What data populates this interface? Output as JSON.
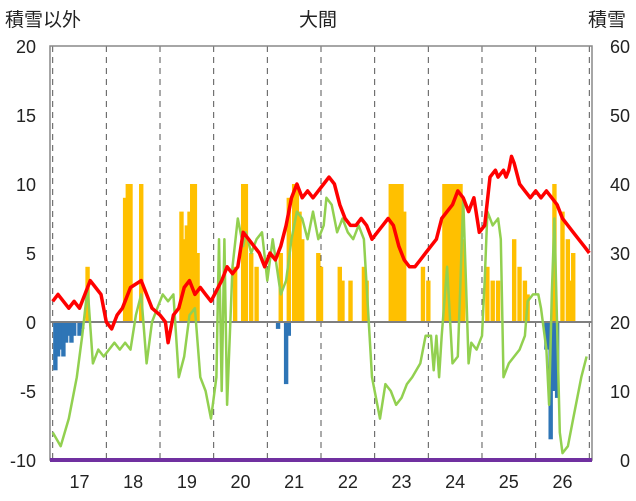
{
  "chart_data": {
    "type": "bar+line",
    "title": "大間",
    "ylabel_left": "積雪以外",
    "ylabel_right": "積雪",
    "ylim_left": [
      -10,
      20
    ],
    "yticks_left": [
      "-10",
      "-5",
      "0",
      "5",
      "10",
      "15",
      "20"
    ],
    "ylim_right": [
      0,
      60
    ],
    "yticks_right": [
      "0",
      "10",
      "20",
      "30",
      "40",
      "50",
      "60"
    ],
    "xlim": [
      16.45,
      26.55
    ],
    "x_ticks": [
      "17",
      "18",
      "19",
      "20",
      "21",
      "22",
      "23",
      "24",
      "25",
      "26"
    ],
    "x_divisions": [
      16.5,
      17.5,
      18.5,
      19.5,
      20.5,
      21.5,
      22.5,
      23.5,
      24.5,
      25.5,
      26.5
    ],
    "grid": "vertical dashed at each x tick",
    "series": [
      {
        "kind": "bar",
        "axis": "left",
        "color": "#ffc000",
        "points": [
          [
            17.15,
            4
          ],
          [
            17.85,
            9
          ],
          [
            17.9,
            10
          ],
          [
            17.95,
            10
          ],
          [
            18.15,
            10
          ],
          [
            18.9,
            8
          ],
          [
            18.95,
            6
          ],
          [
            19.0,
            7
          ],
          [
            19.05,
            8
          ],
          [
            19.1,
            10
          ],
          [
            19.15,
            10
          ],
          [
            19.2,
            5
          ],
          [
            19.9,
            4
          ],
          [
            20.05,
            10
          ],
          [
            20.1,
            10
          ],
          [
            20.2,
            5
          ],
          [
            20.3,
            4
          ],
          [
            20.75,
            5
          ],
          [
            20.9,
            9
          ],
          [
            21.0,
            10
          ],
          [
            21.05,
            10
          ],
          [
            21.1,
            8
          ],
          [
            21.15,
            6
          ],
          [
            21.45,
            5
          ],
          [
            21.5,
            4
          ],
          [
            21.85,
            4
          ],
          [
            21.9,
            3
          ],
          [
            22.05,
            3
          ],
          [
            22.3,
            4
          ],
          [
            22.35,
            3
          ],
          [
            22.8,
            10
          ],
          [
            22.85,
            10
          ],
          [
            22.9,
            10
          ],
          [
            22.95,
            10
          ],
          [
            23.0,
            10
          ],
          [
            23.05,
            8
          ],
          [
            23.4,
            4
          ],
          [
            23.5,
            3
          ],
          [
            23.8,
            10
          ],
          [
            23.85,
            10
          ],
          [
            23.9,
            10
          ],
          [
            23.95,
            10
          ],
          [
            24.0,
            10
          ],
          [
            24.05,
            10
          ],
          [
            24.1,
            10
          ],
          [
            24.15,
            6
          ],
          [
            24.6,
            4
          ],
          [
            24.7,
            3
          ],
          [
            24.8,
            3
          ],
          [
            25.1,
            6
          ],
          [
            25.2,
            4
          ],
          [
            25.3,
            3
          ],
          [
            25.35,
            2
          ],
          [
            25.85,
            10
          ],
          [
            26.0,
            8
          ],
          [
            26.1,
            6
          ],
          [
            26.15,
            3
          ],
          [
            26.2,
            5
          ]
        ]
      },
      {
        "kind": "bar",
        "axis": "left",
        "color": "#2e75b6",
        "points": [
          [
            16.55,
            -3.5
          ],
          [
            16.6,
            -2.5
          ],
          [
            16.65,
            -2.0
          ],
          [
            16.7,
            -2.5
          ],
          [
            16.75,
            -1.5
          ],
          [
            16.8,
            -1
          ],
          [
            16.85,
            -1.5
          ],
          [
            16.9,
            -1
          ],
          [
            17.0,
            -1
          ],
          [
            17.05,
            -0.5
          ],
          [
            20.7,
            -0.5
          ],
          [
            20.85,
            -4.5
          ],
          [
            20.9,
            -1
          ],
          [
            25.7,
            -2.0
          ],
          [
            25.78,
            -8.5
          ],
          [
            25.82,
            -5.0
          ],
          [
            25.9,
            -5.5
          ]
        ]
      },
      {
        "kind": "line",
        "axis": "left",
        "color": "#92d050",
        "name": "",
        "points": [
          [
            16.5,
            -8.0
          ],
          [
            16.65,
            -9.0
          ],
          [
            16.8,
            -7.0
          ],
          [
            16.95,
            -4.0
          ],
          [
            17.05,
            -1.0
          ],
          [
            17.15,
            2.5
          ],
          [
            17.25,
            -3.0
          ],
          [
            17.35,
            -2.0
          ],
          [
            17.45,
            -2.5
          ],
          [
            17.55,
            -2.0
          ],
          [
            17.65,
            -1.5
          ],
          [
            17.75,
            -2.0
          ],
          [
            17.85,
            -1.5
          ],
          [
            17.95,
            -2.0
          ],
          [
            18.05,
            0.5
          ],
          [
            18.15,
            2.0
          ],
          [
            18.25,
            -3.0
          ],
          [
            18.35,
            0.0
          ],
          [
            18.45,
            1.0
          ],
          [
            18.55,
            2.0
          ],
          [
            18.65,
            1.5
          ],
          [
            18.75,
            2.0
          ],
          [
            18.85,
            -4.0
          ],
          [
            18.95,
            -2.5
          ],
          [
            19.05,
            0.5
          ],
          [
            19.15,
            1.0
          ],
          [
            19.25,
            -4.0
          ],
          [
            19.35,
            -5.0
          ],
          [
            19.45,
            -7.0
          ],
          [
            19.55,
            -4.0
          ],
          [
            19.6,
            6.0
          ],
          [
            19.65,
            -5.0
          ],
          [
            19.7,
            6.0
          ],
          [
            19.75,
            -6.0
          ],
          [
            19.85,
            4.0
          ],
          [
            19.95,
            7.5
          ],
          [
            20.05,
            5.5
          ],
          [
            20.1,
            6.5
          ],
          [
            20.2,
            5.0
          ],
          [
            20.3,
            6.0
          ],
          [
            20.4,
            6.5
          ],
          [
            20.5,
            3.0
          ],
          [
            20.6,
            6.0
          ],
          [
            20.75,
            2.0
          ],
          [
            20.85,
            3.0
          ],
          [
            20.95,
            6.0
          ],
          [
            21.05,
            8.0
          ],
          [
            21.15,
            7.5
          ],
          [
            21.25,
            6.0
          ],
          [
            21.35,
            8.0
          ],
          [
            21.45,
            6.0
          ],
          [
            21.55,
            7.0
          ],
          [
            21.6,
            9.0
          ],
          [
            21.7,
            8.5
          ],
          [
            21.8,
            6.5
          ],
          [
            21.9,
            7.5
          ],
          [
            22.0,
            6.5
          ],
          [
            22.1,
            6.0
          ],
          [
            22.2,
            7.0
          ],
          [
            22.3,
            6.0
          ],
          [
            22.45,
            -4.0
          ],
          [
            22.6,
            -7.0
          ],
          [
            22.7,
            -4.5
          ],
          [
            22.8,
            -5.0
          ],
          [
            22.9,
            -6.0
          ],
          [
            23.0,
            -5.5
          ],
          [
            23.1,
            -4.5
          ],
          [
            23.2,
            -4.0
          ],
          [
            23.35,
            -3.0
          ],
          [
            23.45,
            -1.0
          ],
          [
            23.55,
            -1.0
          ],
          [
            23.6,
            -3.5
          ],
          [
            23.65,
            -1.0
          ],
          [
            23.7,
            -4.0
          ],
          [
            23.75,
            -1.0
          ],
          [
            23.85,
            4.0
          ],
          [
            23.95,
            -3.0
          ],
          [
            24.05,
            -2.5
          ],
          [
            24.1,
            3.0
          ],
          [
            24.15,
            9.0
          ],
          [
            24.25,
            -3.0
          ],
          [
            24.3,
            -1.5
          ],
          [
            24.4,
            -2.0
          ],
          [
            24.5,
            -1.0
          ],
          [
            24.55,
            3.0
          ],
          [
            24.6,
            8.0
          ],
          [
            24.7,
            7.0
          ],
          [
            24.8,
            7.5
          ],
          [
            24.85,
            6.0
          ],
          [
            24.9,
            -4.0
          ],
          [
            24.95,
            -3.5
          ],
          [
            25.0,
            -3.0
          ],
          [
            25.1,
            -2.5
          ],
          [
            25.2,
            -2.0
          ],
          [
            25.3,
            -1.0
          ],
          [
            25.35,
            1.5
          ],
          [
            25.45,
            2.0
          ],
          [
            25.55,
            2.0
          ],
          [
            25.6,
            1.0
          ],
          [
            25.7,
            -2.0
          ],
          [
            25.75,
            -6.0
          ],
          [
            25.8,
            2.0
          ],
          [
            25.85,
            7.5
          ],
          [
            25.95,
            -8.0
          ],
          [
            26.0,
            -9.5
          ],
          [
            26.1,
            -9.0
          ],
          [
            26.2,
            -7.0
          ],
          [
            26.35,
            -4.0
          ],
          [
            26.45,
            -2.5
          ]
        ]
      },
      {
        "kind": "line",
        "axis": "left",
        "color": "#ff0000",
        "name": "",
        "points": [
          [
            16.5,
            1.5
          ],
          [
            16.6,
            2.0
          ],
          [
            16.7,
            1.5
          ],
          [
            16.8,
            1.0
          ],
          [
            16.9,
            1.5
          ],
          [
            17.0,
            1.0
          ],
          [
            17.1,
            2.0
          ],
          [
            17.2,
            3.0
          ],
          [
            17.3,
            2.5
          ],
          [
            17.4,
            2.0
          ],
          [
            17.5,
            0.0
          ],
          [
            17.6,
            -0.5
          ],
          [
            17.7,
            0.5
          ],
          [
            17.8,
            1.0
          ],
          [
            17.9,
            2.0
          ],
          [
            17.95,
            2.5
          ],
          [
            18.15,
            3.0
          ],
          [
            18.25,
            2.0
          ],
          [
            18.35,
            1.0
          ],
          [
            18.5,
            0.5
          ],
          [
            18.6,
            0.0
          ],
          [
            18.65,
            -1.5
          ],
          [
            18.75,
            0.5
          ],
          [
            18.85,
            1.0
          ],
          [
            18.95,
            2.5
          ],
          [
            19.05,
            3.0
          ],
          [
            19.15,
            2.0
          ],
          [
            19.25,
            2.5
          ],
          [
            19.35,
            2.0
          ],
          [
            19.45,
            1.5
          ],
          [
            19.65,
            3.0
          ],
          [
            19.75,
            4.0
          ],
          [
            19.85,
            3.5
          ],
          [
            19.95,
            4.0
          ],
          [
            20.05,
            6.5
          ],
          [
            20.15,
            6.0
          ],
          [
            20.25,
            5.5
          ],
          [
            20.35,
            5.0
          ],
          [
            20.45,
            4.0
          ],
          [
            20.55,
            5.0
          ],
          [
            20.65,
            4.5
          ],
          [
            20.75,
            5.5
          ],
          [
            20.85,
            7.0
          ],
          [
            20.95,
            9.0
          ],
          [
            21.05,
            10.0
          ],
          [
            21.15,
            9.0
          ],
          [
            21.25,
            9.5
          ],
          [
            21.35,
            9.0
          ],
          [
            21.45,
            9.5
          ],
          [
            21.55,
            10.0
          ],
          [
            21.65,
            10.5
          ],
          [
            21.75,
            10.0
          ],
          [
            21.85,
            8.5
          ],
          [
            21.95,
            7.5
          ],
          [
            22.05,
            7.0
          ],
          [
            22.15,
            7.0
          ],
          [
            22.25,
            7.5
          ],
          [
            22.35,
            7.0
          ],
          [
            22.45,
            6.0
          ],
          [
            22.55,
            6.5
          ],
          [
            22.65,
            7.0
          ],
          [
            22.75,
            7.5
          ],
          [
            22.85,
            7.0
          ],
          [
            22.95,
            5.5
          ],
          [
            23.05,
            4.5
          ],
          [
            23.15,
            4.0
          ],
          [
            23.25,
            4.0
          ],
          [
            23.35,
            4.5
          ],
          [
            23.45,
            5.0
          ],
          [
            23.55,
            5.5
          ],
          [
            23.65,
            6.0
          ],
          [
            23.75,
            7.5
          ],
          [
            23.85,
            8.0
          ],
          [
            23.95,
            8.5
          ],
          [
            24.05,
            9.5
          ],
          [
            24.15,
            9.0
          ],
          [
            24.25,
            8.0
          ],
          [
            24.35,
            9.0
          ],
          [
            24.45,
            6.5
          ],
          [
            24.55,
            7.0
          ],
          [
            24.65,
            10.5
          ],
          [
            24.75,
            11.0
          ],
          [
            24.8,
            10.5
          ],
          [
            24.9,
            11.0
          ],
          [
            24.95,
            10.5
          ],
          [
            25.0,
            11.0
          ],
          [
            25.05,
            12.0
          ],
          [
            25.1,
            11.5
          ],
          [
            25.2,
            10.0
          ],
          [
            25.3,
            9.5
          ],
          [
            25.4,
            9.0
          ],
          [
            25.5,
            9.5
          ],
          [
            25.6,
            9.0
          ],
          [
            25.7,
            9.5
          ],
          [
            25.8,
            9.0
          ],
          [
            25.9,
            8.5
          ],
          [
            26.0,
            7.5
          ],
          [
            26.1,
            7.0
          ],
          [
            26.2,
            6.5
          ],
          [
            26.3,
            6.0
          ],
          [
            26.4,
            5.5
          ],
          [
            26.5,
            5.0
          ]
        ]
      }
    ],
    "colors": {
      "axis": "#888888",
      "zero_line": "#7f7f7f",
      "bottom_band": "#7030a0"
    }
  }
}
